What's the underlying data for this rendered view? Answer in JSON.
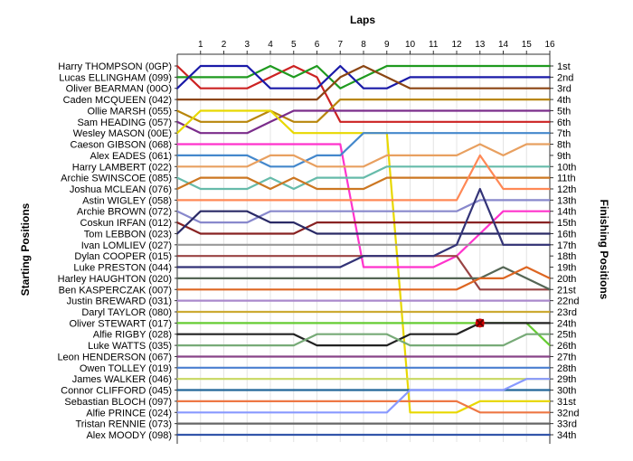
{
  "chart_data": {
    "type": "line",
    "title": "",
    "xlabel": "Laps",
    "ylabel_left": "Starting Positions",
    "ylabel_right": "Finishing Positions",
    "x": [
      0,
      1,
      2,
      3,
      4,
      5,
      6,
      7,
      8,
      9,
      10,
      11,
      12,
      13,
      14,
      15,
      16
    ],
    "x_tick_labels": [
      "1",
      "2",
      "3",
      "4",
      "5",
      "6",
      "7",
      "8",
      "9",
      "10",
      "11",
      "12",
      "13",
      "14",
      "15",
      "16"
    ],
    "starting_positions": [
      "Harry THOMPSON (0GP)",
      "Lucas ELLINGHAM (099)",
      "Oliver BEARMAN (00O)",
      "Caden MCQUEEN (042)",
      "Ollie MARSH (055)",
      "Sam HEADING (057)",
      "Wesley MASON (00E)",
      "Caeson GIBSON (068)",
      "Alex EADES (061)",
      "Harry LAMBERT (022)",
      "Archie SWINSCOE (085)",
      "Joshua MCLEAN (076)",
      "Astin WIGLEY (058)",
      "Archie BROWN (072)",
      "Coskun IRFAN (012)",
      "Tom LEBBON (023)",
      "Ivan LOMLIEV (027)",
      "Dylan COOPER (015)",
      "Luke PRESTON (044)",
      "Harley HAUGHTON (020)",
      "Ben KASPERCZAK (007)",
      "Justin BREWARD (031)",
      "Daryl TAYLOR (080)",
      "Oliver STEWART (017)",
      "Alfie RIGBY (028)",
      "Luke WATTS (035)",
      "Leon HENDERSON (067)",
      "Owen TOLLEY (019)",
      "James WALKER (046)",
      "Connor CLIFFORD (045)",
      "Sebastian BLOCH (097)",
      "Alfie PRINCE (024)",
      "Tristan RENNIE (073)",
      "Alex MOODY (098)"
    ],
    "finishing_positions": [
      "1st",
      "2nd",
      "3rd",
      "4th",
      "5th",
      "6th",
      "7th",
      "8th",
      "9th",
      "10th",
      "11th",
      "12th",
      "13th",
      "14th",
      "15th",
      "16th",
      "17th",
      "18th",
      "19th",
      "20th",
      "21st",
      "22nd",
      "23rd",
      "24th",
      "25th",
      "26th",
      "27th",
      "28th",
      "29th",
      "30th",
      "31st",
      "32nd",
      "33rd",
      "34th"
    ],
    "positions_range": [
      1,
      34
    ],
    "retirement_marker": {
      "lap": 13,
      "position": 24
    },
    "grid": true,
    "series": [
      {
        "color": "#cc2222",
        "positions": [
          1,
          3,
          3,
          3,
          2,
          1,
          2,
          6,
          6,
          6,
          6,
          6,
          6,
          6,
          6,
          6,
          6
        ]
      },
      {
        "color": "#1f9a1f",
        "positions": [
          2,
          2,
          2,
          2,
          1,
          2,
          1,
          3,
          2,
          1,
          1,
          1,
          1,
          1,
          1,
          1,
          1
        ]
      },
      {
        "color": "#1a1aa8",
        "positions": [
          3,
          1,
          1,
          1,
          3,
          3,
          3,
          1,
          3,
          3,
          2,
          2,
          2,
          2,
          2,
          2,
          2
        ]
      },
      {
        "color": "#8b4513",
        "positions": [
          4,
          4,
          4,
          4,
          4,
          4,
          4,
          2,
          1,
          2,
          3,
          3,
          3,
          3,
          3,
          3,
          3
        ]
      },
      {
        "color": "#b8860b",
        "positions": [
          5,
          6,
          6,
          6,
          5,
          6,
          6,
          4,
          4,
          4,
          4,
          4,
          4,
          4,
          4,
          4,
          4
        ]
      },
      {
        "color": "#7b2d8b",
        "positions": [
          6,
          7,
          7,
          7,
          6,
          5,
          5,
          5,
          5,
          5,
          5,
          5,
          5,
          5,
          5,
          5,
          5
        ]
      },
      {
        "color": "#e8d800",
        "positions": [
          7,
          5,
          5,
          5,
          5,
          7,
          7,
          7,
          7,
          7,
          32,
          32,
          32,
          31,
          31,
          31,
          31
        ]
      },
      {
        "color": "#ff33cc",
        "positions": [
          8,
          8,
          8,
          8,
          8,
          8,
          8,
          8,
          19,
          19,
          19,
          19,
          18,
          16,
          14,
          14,
          14
        ]
      },
      {
        "color": "#4488cc",
        "positions": [
          9,
          9,
          9,
          9,
          10,
          10,
          9,
          9,
          7,
          7,
          7,
          7,
          7,
          7,
          7,
          7,
          7
        ]
      },
      {
        "color": "#e8a060",
        "positions": [
          10,
          10,
          10,
          10,
          9,
          9,
          10,
          10,
          10,
          9,
          9,
          9,
          9,
          8,
          9,
          8,
          8
        ]
      },
      {
        "color": "#66bbaa",
        "positions": [
          11,
          12,
          12,
          12,
          11,
          12,
          11,
          11,
          11,
          10,
          10,
          10,
          10,
          10,
          10,
          10,
          10
        ]
      },
      {
        "color": "#cc7722",
        "positions": [
          12,
          11,
          11,
          11,
          12,
          11,
          12,
          12,
          12,
          11,
          11,
          11,
          11,
          11,
          11,
          11,
          11
        ]
      },
      {
        "color": "#ff8855",
        "positions": [
          13,
          13,
          13,
          13,
          13,
          13,
          13,
          13,
          13,
          13,
          13,
          13,
          13,
          9,
          12,
          12,
          12
        ]
      },
      {
        "color": "#8888cc",
        "positions": [
          14,
          15,
          15,
          15,
          14,
          14,
          14,
          14,
          14,
          14,
          14,
          14,
          14,
          13,
          13,
          13,
          13
        ]
      },
      {
        "color": "#882222",
        "positions": [
          15,
          16,
          16,
          16,
          16,
          16,
          15,
          15,
          15,
          15,
          15,
          15,
          15,
          15,
          15,
          15,
          15
        ]
      },
      {
        "color": "#2a2a66",
        "positions": [
          16,
          14,
          14,
          14,
          15,
          15,
          16,
          16,
          16,
          16,
          16,
          16,
          16,
          16,
          16,
          16,
          16
        ]
      },
      {
        "color": "#999999",
        "positions": [
          17,
          17,
          17,
          17,
          17,
          17,
          17,
          17,
          17,
          17,
          17,
          17,
          17,
          17,
          17,
          17,
          17
        ]
      },
      {
        "color": "#994444",
        "positions": [
          18,
          18,
          18,
          18,
          18,
          18,
          18,
          18,
          18,
          18,
          18,
          18,
          18,
          21,
          21,
          21,
          21
        ]
      },
      {
        "color": "#333377",
        "positions": [
          19,
          19,
          19,
          19,
          19,
          19,
          19,
          19,
          18,
          18,
          18,
          18,
          17,
          12,
          17,
          17,
          17
        ]
      },
      {
        "color": "#556655",
        "positions": [
          20,
          20,
          20,
          20,
          20,
          20,
          20,
          20,
          20,
          20,
          20,
          20,
          20,
          20,
          19,
          20,
          21
        ]
      },
      {
        "color": "#dd6622",
        "positions": [
          21,
          21,
          21,
          21,
          21,
          21,
          21,
          21,
          21,
          21,
          21,
          21,
          21,
          20,
          20,
          19,
          20
        ]
      },
      {
        "color": "#aa88cc",
        "positions": [
          22,
          22,
          22,
          22,
          22,
          22,
          22,
          22,
          22,
          22,
          22,
          22,
          22,
          22,
          22,
          22,
          22
        ]
      },
      {
        "color": "#ccaa33",
        "positions": [
          23,
          23,
          23,
          23,
          23,
          23,
          23,
          23,
          23,
          23,
          23,
          23,
          23,
          23,
          23,
          23,
          23
        ]
      },
      {
        "color": "#66cc33",
        "positions": [
          24,
          24,
          24,
          24,
          24,
          24,
          24,
          24,
          24,
          24,
          24,
          24,
          24,
          24,
          24,
          24,
          26
        ]
      },
      {
        "color": "#222222",
        "positions": [
          25,
          25,
          25,
          25,
          25,
          25,
          26,
          26,
          26,
          26,
          25,
          25,
          25,
          24,
          24,
          24,
          24
        ]
      },
      {
        "color": "#77aa77",
        "positions": [
          26,
          26,
          26,
          26,
          26,
          26,
          25,
          25,
          25,
          25,
          26,
          26,
          26,
          26,
          26,
          25,
          25
        ]
      },
      {
        "color": "#884488",
        "positions": [
          27,
          27,
          27,
          27,
          27,
          27,
          27,
          27,
          27,
          27,
          27,
          27,
          27,
          27,
          27,
          27,
          27
        ]
      },
      {
        "color": "#4a7fd0",
        "positions": [
          28,
          28,
          28,
          28,
          28,
          28,
          28,
          28,
          28,
          28,
          28,
          28,
          28,
          28,
          28,
          28,
          28
        ]
      },
      {
        "color": "#c8d860",
        "positions": [
          29,
          29,
          29,
          29,
          29,
          29,
          29,
          29,
          29,
          29,
          29,
          29,
          29,
          29,
          29,
          29,
          29
        ]
      },
      {
        "color": "#226699",
        "positions": [
          30,
          30,
          30,
          30,
          30,
          30,
          30,
          30,
          30,
          30,
          30,
          30,
          30,
          30,
          30,
          30,
          30
        ]
      },
      {
        "color": "#ee7744",
        "positions": [
          31,
          31,
          31,
          31,
          31,
          31,
          31,
          31,
          31,
          31,
          31,
          31,
          31,
          32,
          32,
          32,
          32
        ]
      },
      {
        "color": "#8899ff",
        "positions": [
          32,
          32,
          32,
          32,
          32,
          32,
          32,
          32,
          32,
          32,
          30,
          30,
          30,
          30,
          30,
          29,
          29
        ]
      },
      {
        "color": "#666666",
        "positions": [
          33,
          33,
          33,
          33,
          33,
          33,
          33,
          33,
          33,
          33,
          33,
          33,
          33,
          33,
          33,
          33,
          33
        ]
      },
      {
        "color": "#3355aa",
        "positions": [
          34,
          34,
          34,
          34,
          34,
          34,
          34,
          34,
          34,
          34,
          34,
          34,
          34,
          34,
          34,
          34,
          34
        ]
      }
    ]
  }
}
